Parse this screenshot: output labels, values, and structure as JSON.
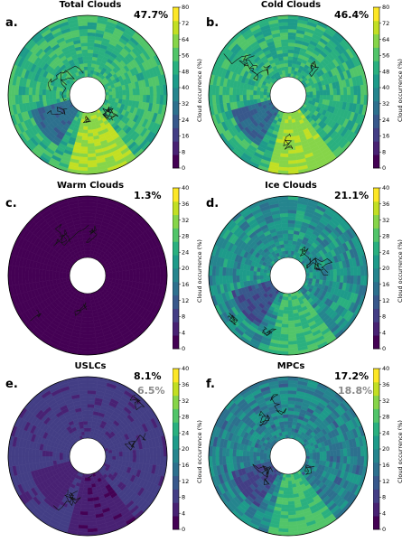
{
  "colorbar_label": "Cloud occurrence (%)",
  "colormap": [
    "#440154",
    "#482173",
    "#433e85",
    "#38588c",
    "#2d708e",
    "#25858e",
    "#1e9b8a",
    "#2ab07f",
    "#52c569",
    "#86d549",
    "#c2df23",
    "#fde725"
  ],
  "panels": [
    {
      "id": "a",
      "letter": "a.",
      "title": "Total Clouds",
      "pct": "47.7%",
      "pct2": "",
      "cbar_ticks": [
        "80",
        "72",
        "64",
        "56",
        "48",
        "40",
        "32",
        "24",
        "16",
        "8",
        "0"
      ],
      "cmax": 80,
      "base": 52,
      "shelf": 66,
      "var": 7
    },
    {
      "id": "b",
      "letter": "b.",
      "title": "Cold Clouds",
      "pct": "46.4%",
      "pct2": "",
      "cbar_ticks": [
        "80",
        "72",
        "64",
        "56",
        "48",
        "40",
        "32",
        "24",
        "16",
        "8",
        "0"
      ],
      "cmax": 80,
      "base": 50,
      "shelf": 65,
      "var": 7
    },
    {
      "id": "c",
      "letter": "c.",
      "title": "Warm Clouds",
      "pct": "1.3%",
      "pct2": "",
      "cbar_ticks": [
        "40",
        "36",
        "32",
        "28",
        "24",
        "20",
        "16",
        "12",
        "8",
        "4",
        "0"
      ],
      "cmax": 40,
      "base": 1,
      "shelf": 1,
      "var": 1
    },
    {
      "id": "d",
      "letter": "d.",
      "title": "Ice Clouds",
      "pct": "21.1%",
      "pct2": "",
      "cbar_ticks": [
        "40",
        "36",
        "32",
        "28",
        "24",
        "20",
        "16",
        "12",
        "8",
        "4",
        "0"
      ],
      "cmax": 40,
      "base": 20,
      "shelf": 27,
      "var": 5
    },
    {
      "id": "e",
      "letter": "e.",
      "title": "USLCs",
      "pct": "8.1%",
      "pct2": "6.5%",
      "cbar_ticks": [
        "40",
        "36",
        "32",
        "28",
        "24",
        "20",
        "16",
        "12",
        "8",
        "4",
        "0"
      ],
      "cmax": 40,
      "base": 8,
      "shelf": 4,
      "var": 2
    },
    {
      "id": "f",
      "letter": "f.",
      "title": "MPCs",
      "pct": "17.2%",
      "pct2": "18.8%",
      "cbar_ticks": [
        "40",
        "36",
        "32",
        "28",
        "24",
        "20",
        "16",
        "12",
        "8",
        "4",
        "0"
      ],
      "cmax": 40,
      "base": 18,
      "shelf": 27,
      "var": 5
    }
  ]
}
